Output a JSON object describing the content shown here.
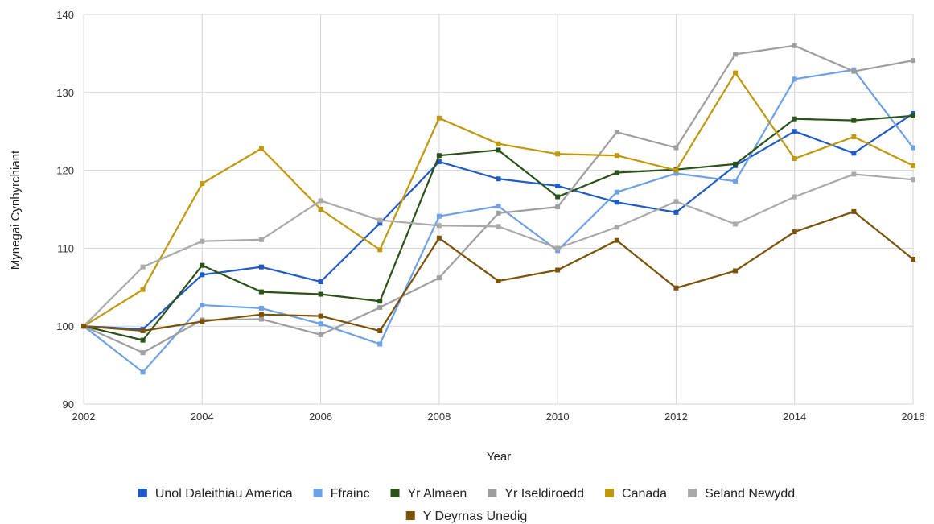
{
  "chart_data": {
    "type": "line",
    "xlabel": "Year",
    "ylabel": "Mynegai Cynhyrchiant",
    "xlim": [
      2002,
      2016
    ],
    "ylim": [
      90,
      140
    ],
    "x_ticks": [
      2002,
      2004,
      2006,
      2008,
      2010,
      2012,
      2014,
      2016
    ],
    "y_ticks": [
      90,
      100,
      110,
      120,
      130,
      140
    ],
    "grid": true,
    "legend_position": "bottom",
    "x": [
      2002,
      2003,
      2004,
      2005,
      2006,
      2007,
      2008,
      2009,
      2010,
      2011,
      2012,
      2013,
      2014,
      2015,
      2016
    ],
    "series": [
      {
        "name": "Unol Daleithiau America",
        "color": "#1f5bc6",
        "values": [
          100,
          99.6,
          106.6,
          107.6,
          105.7,
          113.2,
          121.1,
          118.9,
          118.0,
          115.9,
          114.6,
          120.6,
          125.0,
          122.2,
          127.3
        ]
      },
      {
        "name": "Ffrainc",
        "color": "#6ea0e6",
        "values": [
          100,
          94.1,
          102.7,
          102.3,
          100.3,
          97.7,
          114.1,
          115.4,
          109.7,
          117.2,
          119.6,
          118.6,
          131.7,
          132.9,
          122.9
        ]
      },
      {
        "name": "Yr Almaen",
        "color": "#2a5218",
        "values": [
          100,
          98.2,
          107.8,
          104.4,
          104.1,
          103.2,
          121.9,
          122.6,
          116.6,
          119.7,
          120.1,
          120.8,
          126.6,
          126.4,
          127.0
        ]
      },
      {
        "name": "Yr Iseldiroedd",
        "color": "#9e9e9e",
        "values": [
          100,
          96.6,
          100.8,
          100.9,
          98.9,
          102.4,
          106.2,
          114.5,
          115.3,
          124.9,
          122.9,
          134.9,
          136.0,
          132.7,
          134.1
        ]
      },
      {
        "name": "Canada",
        "color": "#c0980e",
        "values": [
          100,
          104.7,
          118.3,
          122.8,
          115.0,
          109.8,
          126.7,
          123.4,
          122.1,
          121.9,
          120.0,
          132.5,
          121.5,
          124.3,
          120.6
        ]
      },
      {
        "name": "Seland Newydd",
        "color": "#a9a9a9",
        "values": [
          100,
          107.6,
          110.9,
          111.1,
          116.1,
          113.6,
          112.9,
          112.8,
          110.0,
          112.7,
          116.0,
          113.1,
          116.6,
          119.5,
          118.8
        ]
      },
      {
        "name": "Y Deyrnas Unedig",
        "color": "#7a5208",
        "values": [
          100,
          99.4,
          100.6,
          101.5,
          101.3,
          99.4,
          111.3,
          105.8,
          107.2,
          111.0,
          104.9,
          107.1,
          112.1,
          114.7,
          108.6
        ]
      }
    ]
  }
}
